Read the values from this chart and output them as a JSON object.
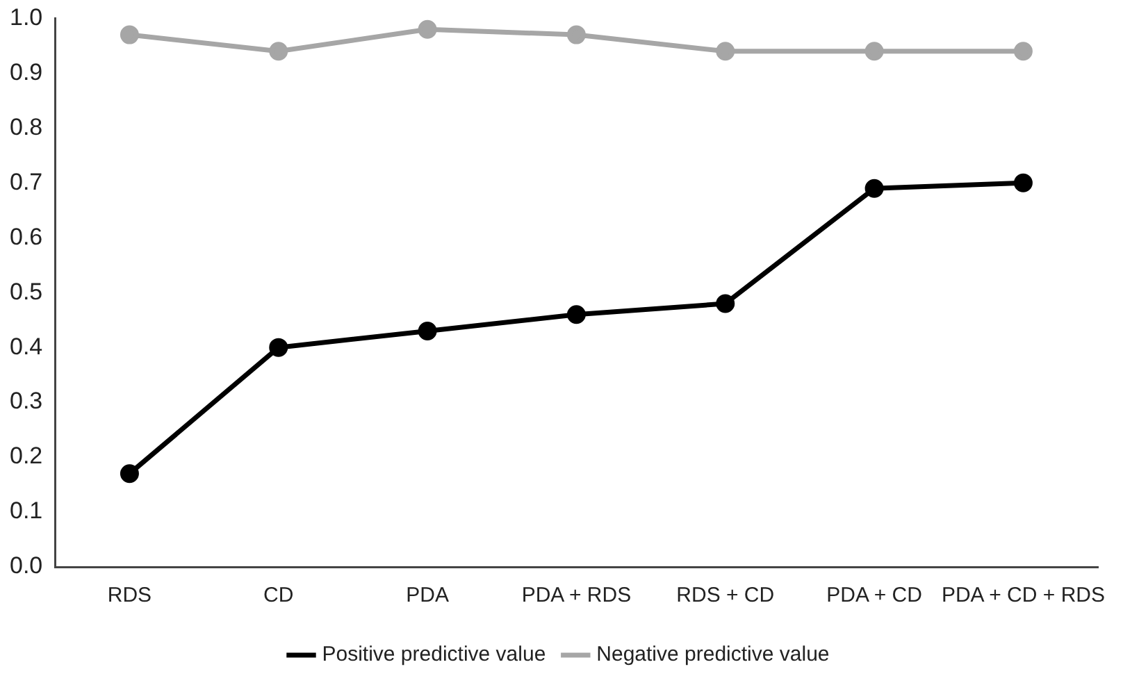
{
  "chart_data": {
    "type": "line",
    "categories": [
      "RDS",
      "CD",
      "PDA",
      "PDA + RDS",
      "RDS + CD",
      "PDA + CD",
      "PDA + CD + RDS"
    ],
    "series": [
      {
        "name": "Positive predictive value",
        "color": "#000000",
        "values": [
          0.17,
          0.4,
          0.43,
          0.46,
          0.48,
          0.69,
          0.7
        ]
      },
      {
        "name": "Negative predictive value",
        "color": "#a6a6a6",
        "values": [
          0.97,
          0.94,
          0.98,
          0.97,
          0.94,
          0.94,
          0.94
        ]
      }
    ],
    "ylim": [
      0,
      1
    ],
    "yticks": [
      {
        "value": 0,
        "label": "0.0"
      },
      0.1,
      0.2,
      0.3,
      0.4,
      0.5,
      0.6,
      0.7,
      0.8,
      0.9,
      {
        "value": 1,
        "label": "1.0"
      }
    ],
    "grid": false,
    "legend": "bottom",
    "marker": "circle",
    "line_style": "solid"
  }
}
